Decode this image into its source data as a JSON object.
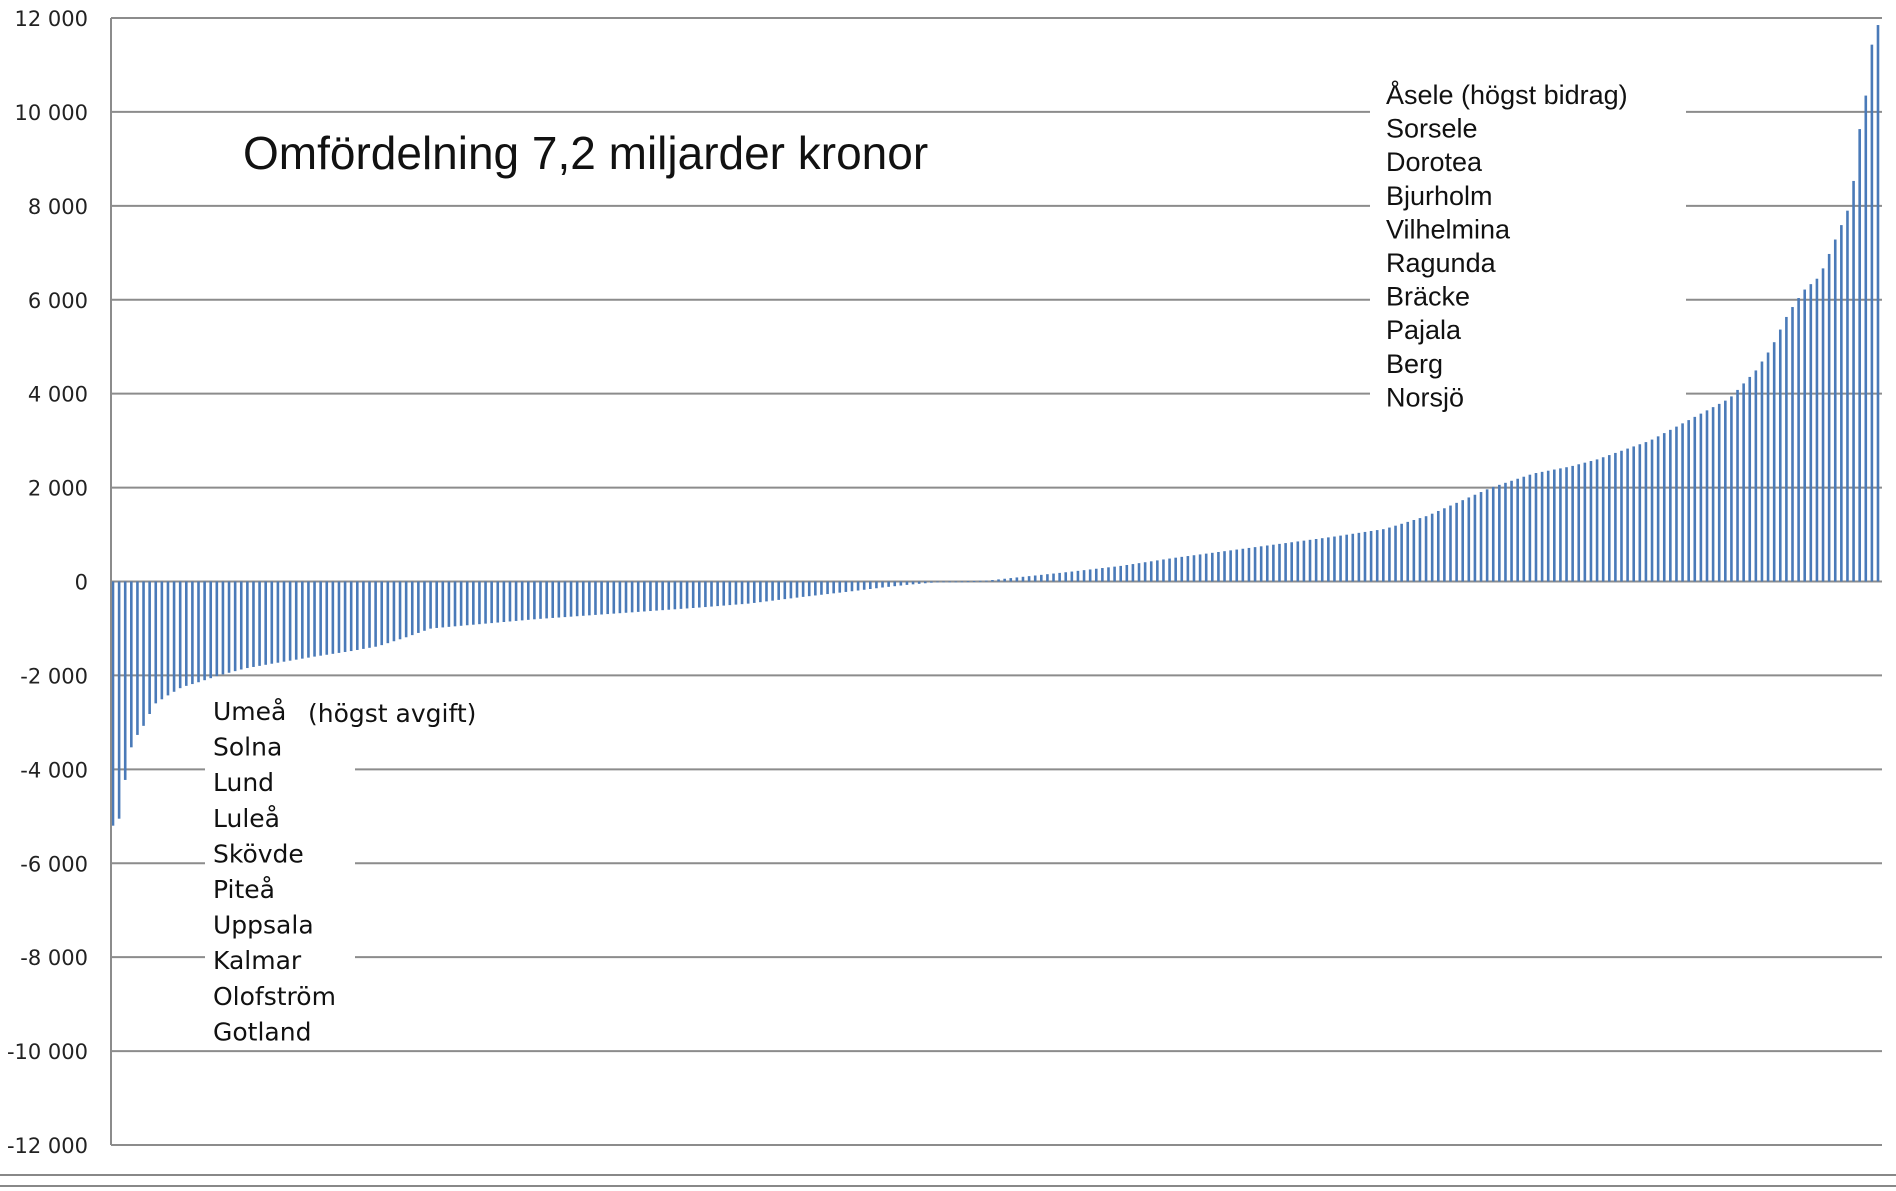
{
  "chart_data": {
    "type": "bar",
    "title": "Omfördelning 7,2 miljarder kronor",
    "ylim": [
      -12000,
      12000
    ],
    "y_ticks": [
      12000,
      10000,
      8000,
      6000,
      4000,
      2000,
      0,
      -2000,
      -4000,
      -6000,
      -8000,
      -10000,
      -12000
    ],
    "y_tick_labels": [
      "12 000",
      "10 000",
      "8 000",
      "6 000",
      "4 000",
      "2 000",
      "0",
      "-2 000",
      "-4 000",
      "-6 000",
      "-8 000",
      "-10 000",
      "-12 000"
    ],
    "grid": true,
    "bar_color": "#4a7ab8",
    "grid_color": "#8c8c8c",
    "categories_count": 290,
    "profile_knots": [
      [
        0,
        -5200
      ],
      [
        1,
        -5150
      ],
      [
        2,
        -4500
      ],
      [
        3,
        -3600
      ],
      [
        4,
        -3450
      ],
      [
        5,
        -3150
      ],
      [
        6,
        -3050
      ],
      [
        7,
        -2800
      ],
      [
        8,
        -2600
      ],
      [
        10,
        -2450
      ],
      [
        13,
        -2250
      ],
      [
        16,
        -2150
      ],
      [
        20,
        -2000
      ],
      [
        25,
        -1850
      ],
      [
        30,
        -1750
      ],
      [
        38,
        -1600
      ],
      [
        45,
        -1480
      ],
      [
        50,
        -1380
      ],
      [
        55,
        -1200
      ],
      [
        60,
        -1000
      ],
      [
        70,
        -900
      ],
      [
        80,
        -800
      ],
      [
        90,
        -720
      ],
      [
        100,
        -640
      ],
      [
        110,
        -560
      ],
      [
        120,
        -470
      ],
      [
        130,
        -330
      ],
      [
        140,
        -200
      ],
      [
        145,
        -130
      ],
      [
        150,
        -70
      ],
      [
        155,
        -20
      ],
      [
        160,
        0
      ],
      [
        165,
        20
      ],
      [
        170,
        80
      ],
      [
        180,
        200
      ],
      [
        190,
        330
      ],
      [
        200,
        500
      ],
      [
        210,
        650
      ],
      [
        220,
        800
      ],
      [
        230,
        950
      ],
      [
        240,
        1120
      ],
      [
        248,
        1400
      ],
      [
        255,
        1750
      ],
      [
        260,
        2000
      ],
      [
        268,
        2300
      ],
      [
        275,
        2450
      ],
      [
        280,
        2600
      ],
      [
        285,
        2800
      ],
      [
        290,
        3000
      ],
      [
        295,
        3300
      ],
      [
        300,
        3600
      ],
      [
        305,
        3900
      ],
      [
        310,
        4500
      ],
      [
        313,
        5000
      ],
      [
        316,
        5700
      ],
      [
        319,
        6200
      ],
      [
        322,
        6500
      ],
      [
        325,
        7300
      ],
      [
        328,
        8100
      ],
      [
        329,
        9200
      ],
      [
        330,
        10000
      ],
      [
        331,
        10500
      ],
      [
        332,
        11600
      ],
      [
        333,
        11850
      ]
    ],
    "annotations_top": [
      "Åsele (högst bidrag)",
      "Sorsele",
      "Dorotea",
      "Bjurholm",
      "Vilhelmina",
      "Ragunda",
      "Bräcke",
      "Pajala",
      "Berg",
      "Norsjö"
    ],
    "annotations_bottom": [
      "Umeå",
      "Solna",
      "Lund",
      "Luleå",
      "Skövde",
      "Piteå",
      "Uppsala",
      "Kalmar",
      "Olofström",
      "Gotland"
    ],
    "annotation_bottom_note": "(högst avgift)"
  }
}
